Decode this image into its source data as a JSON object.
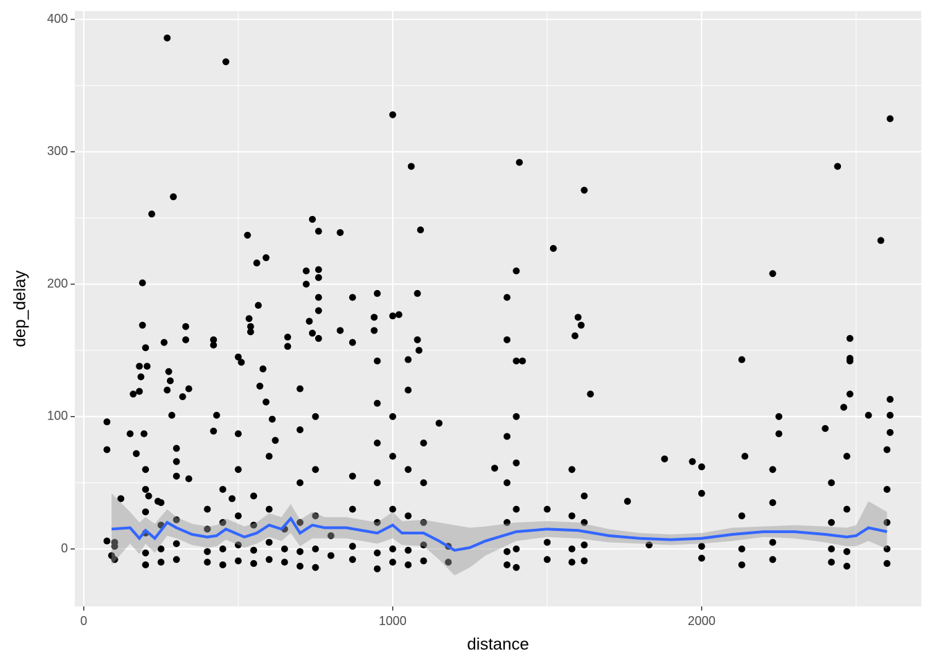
{
  "chart_data": {
    "type": "scatter",
    "x_label": "distance",
    "y_label": "dep_delay",
    "xlim": [
      -29,
      2711
    ],
    "ylim": [
      -43.4,
      406.3
    ],
    "xticks": [
      0,
      1000,
      2000
    ],
    "yticks": [
      0,
      100,
      200,
      300,
      400
    ],
    "x_minor_ticks": [
      500,
      1500,
      2500
    ],
    "y_minor_ticks": [
      50,
      150,
      250,
      350
    ],
    "grid": true,
    "color": "#000000",
    "x": [
      75,
      75,
      75,
      90,
      100,
      120,
      150,
      160,
      170,
      180,
      180,
      185,
      190,
      190,
      195,
      200,
      205,
      200,
      210,
      220,
      240,
      260,
      270,
      275,
      280,
      285,
      270,
      290,
      300,
      300,
      320,
      330,
      330,
      340,
      340,
      420,
      420,
      430,
      420,
      460,
      480,
      500,
      500,
      510,
      530,
      535,
      540,
      540,
      560,
      565,
      570,
      580,
      590,
      590,
      610,
      620,
      660,
      660,
      700,
      720,
      720,
      730,
      740,
      740,
      760,
      760,
      760,
      760,
      760,
      760,
      830,
      830,
      870,
      870,
      940,
      950,
      950,
      940,
      1000,
      1000,
      1020,
      1050,
      1060,
      1080,
      1090,
      1080,
      1085,
      1150,
      1330,
      1370,
      1370,
      1400,
      1410,
      1400,
      1420,
      1520,
      1590,
      1600,
      1610,
      1620,
      1640,
      1760,
      1830,
      1880,
      1970,
      2000,
      2000,
      2130,
      2140,
      2230,
      2250,
      2250,
      2400,
      2440,
      2460,
      2480,
      2480,
      2480,
      2480,
      2540,
      2580,
      2610,
      2610,
      2610,
      2610,
      100,
      100,
      200,
      200,
      200,
      200,
      200,
      250,
      250,
      250,
      250,
      300,
      300,
      300,
      300,
      400,
      400,
      400,
      400,
      450,
      450,
      450,
      450,
      500,
      500,
      500,
      500,
      550,
      550,
      550,
      550,
      600,
      600,
      600,
      600,
      650,
      650,
      650,
      700,
      700,
      700,
      700,
      700,
      750,
      750,
      750,
      750,
      750,
      800,
      800,
      870,
      870,
      870,
      870,
      950,
      950,
      950,
      950,
      950,
      950,
      1000,
      1000,
      1000,
      1000,
      1000,
      1050,
      1050,
      1050,
      1050,
      1050,
      1100,
      1100,
      1100,
      1100,
      1100,
      1180,
      1180,
      1370,
      1370,
      1370,
      1370,
      1370,
      1400,
      1400,
      1400,
      1400,
      1400,
      1500,
      1500,
      1500,
      1580,
      1580,
      1580,
      1580,
      1620,
      1620,
      1620,
      1620,
      2000,
      2000,
      2130,
      2130,
      2130,
      2230,
      2230,
      2230,
      2230,
      2420,
      2420,
      2420,
      2420,
      2470,
      2470,
      2470,
      2470,
      2600,
      2600,
      2600,
      2600,
      2600
    ],
    "y": [
      96,
      75,
      6,
      -5,
      2,
      38,
      87,
      117,
      72,
      138,
      119,
      130,
      201,
      169,
      87,
      152,
      138,
      60,
      40,
      253,
      36,
      156,
      386,
      134,
      127,
      101,
      120,
      266,
      66,
      76,
      115,
      168,
      158,
      121,
      53,
      158,
      154,
      101,
      89,
      368,
      38,
      87,
      145,
      141,
      237,
      174,
      168,
      164,
      216,
      184,
      123,
      136,
      220,
      111,
      98,
      82,
      160,
      153,
      121,
      200,
      210,
      172,
      249,
      163,
      240,
      211,
      205,
      190,
      180,
      159,
      239,
      165,
      190,
      156,
      175,
      193,
      142,
      165,
      328,
      176,
      177,
      143,
      289,
      193,
      241,
      158,
      150,
      95,
      61,
      190,
      158,
      210,
      292,
      142,
      142,
      227,
      161,
      175,
      169,
      271,
      117,
      36,
      3,
      68,
      66,
      62,
      42,
      143,
      70,
      208,
      100,
      87,
      91,
      289,
      107,
      159,
      144,
      142,
      117,
      101,
      233,
      325,
      113,
      101,
      88,
      -8,
      5,
      -12,
      -3,
      12,
      28,
      45,
      -10,
      0,
      18,
      35,
      -8,
      4,
      22,
      55,
      -10,
      -2,
      15,
      30,
      -12,
      0,
      20,
      45,
      -9,
      3,
      25,
      60,
      -11,
      -1,
      18,
      40,
      -8,
      5,
      30,
      70,
      -10,
      0,
      15,
      -13,
      -2,
      20,
      50,
      90,
      -14,
      0,
      25,
      60,
      100,
      -5,
      10,
      -8,
      2,
      30,
      55,
      -15,
      -3,
      20,
      50,
      80,
      110,
      -10,
      0,
      30,
      70,
      100,
      -12,
      -1,
      25,
      60,
      120,
      -9,
      3,
      20,
      50,
      80,
      -10,
      2,
      -12,
      -2,
      20,
      50,
      85,
      -14,
      0,
      30,
      65,
      100,
      -8,
      5,
      30,
      -10,
      0,
      25,
      60,
      -9,
      3,
      20,
      40,
      -7,
      2,
      -12,
      0,
      25,
      -8,
      5,
      35,
      60,
      -10,
      0,
      20,
      50,
      -13,
      -2,
      30,
      70,
      -11,
      0,
      20,
      45,
      75
    ],
    "smooth": {
      "color": "#3366ff",
      "x": [
        90,
        150,
        180,
        200,
        230,
        270,
        300,
        350,
        400,
        430,
        460,
        520,
        560,
        600,
        640,
        670,
        700,
        740,
        780,
        850,
        900,
        950,
        1000,
        1030,
        1100,
        1150,
        1200,
        1250,
        1300,
        1400,
        1500,
        1600,
        1700,
        1800,
        1900,
        2000,
        2100,
        2200,
        2300,
        2400,
        2470,
        2500,
        2540,
        2600
      ],
      "y": [
        15,
        16,
        8,
        14,
        8,
        20,
        16,
        11,
        9,
        10,
        15,
        9,
        12,
        18,
        15,
        23,
        12,
        18,
        16,
        16,
        14,
        12,
        18,
        12,
        12,
        6,
        -1,
        1,
        6,
        13,
        15,
        14,
        10,
        8,
        7,
        8,
        11,
        13,
        13,
        11,
        9,
        10,
        16,
        13
      ],
      "lower": [
        -12,
        4,
        -4,
        4,
        -3,
        10,
        8,
        3,
        1,
        2,
        7,
        1,
        4,
        9,
        6,
        12,
        2,
        8,
        8,
        8,
        6,
        4,
        8,
        3,
        2,
        -8,
        -20,
        -14,
        -5,
        6,
        9,
        8,
        5,
        4,
        3,
        4,
        6,
        9,
        8,
        5,
        2,
        2,
        6,
        0
      ],
      "upper": [
        42,
        28,
        20,
        24,
        19,
        30,
        24,
        19,
        17,
        18,
        23,
        17,
        20,
        27,
        24,
        34,
        22,
        28,
        24,
        24,
        22,
        20,
        28,
        21,
        22,
        20,
        18,
        16,
        17,
        20,
        21,
        20,
        15,
        12,
        11,
        12,
        16,
        17,
        18,
        17,
        16,
        18,
        36,
        28
      ]
    }
  }
}
